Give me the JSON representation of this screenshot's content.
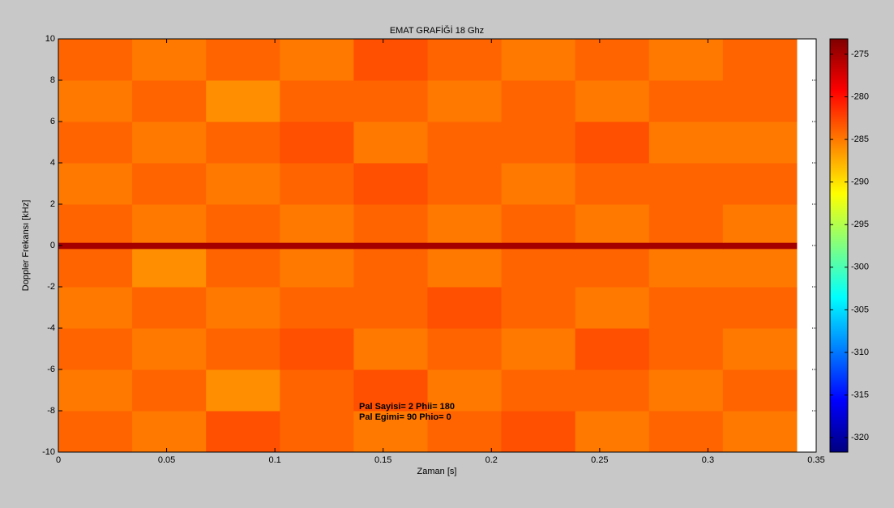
{
  "chart_data": {
    "type": "heatmap",
    "title": "EMAT GRAFİĞİ 18 Ghz",
    "xlabel": "Zaman [s]",
    "ylabel": "Doppler Frekansı [kHz]",
    "annotations": [
      "Pal Sayisi= 2 Phii= 180",
      "Pal Egimi= 90 Phio= 0"
    ],
    "x": [
      0,
      0.0341,
      0.0682,
      0.1023,
      0.1364,
      0.1705,
      0.2046,
      0.2387,
      0.2728,
      0.3069,
      0.341
    ],
    "y": [
      -10,
      -8,
      -6,
      -4,
      -2,
      -0.15,
      0.15,
      2,
      4,
      6,
      8,
      10
    ],
    "values": [
      [
        -284,
        -285,
        -283,
        -284,
        -285,
        -284,
        -283,
        -285,
        -284,
        -285
      ],
      [
        -285,
        -284,
        -286,
        -284,
        -283,
        -285,
        -284,
        -284,
        -285,
        -284
      ],
      [
        -284,
        -285,
        -284,
        -283,
        -285,
        -284,
        -285,
        -283,
        -284,
        -285
      ],
      [
        -285,
        -284,
        -285,
        -284,
        -284,
        -283,
        -284,
        -285,
        -284,
        -284
      ],
      [
        -284,
        -286,
        -284,
        -285,
        -284,
        -285,
        -284,
        -284,
        -285,
        -285
      ],
      [
        -275,
        -275,
        -275,
        -275,
        -275,
        -275,
        -275,
        -275,
        -275,
        -275
      ],
      [
        -284,
        -285,
        -284,
        -285,
        -284,
        -285,
        -284,
        -285,
        -284,
        -285
      ],
      [
        -285,
        -284,
        -285,
        -284,
        -283,
        -284,
        -285,
        -284,
        -284,
        -284
      ],
      [
        -284,
        -285,
        -284,
        -283,
        -285,
        -284,
        -284,
        -283,
        -285,
        -285
      ],
      [
        -285,
        -284,
        -286,
        -284,
        -284,
        -285,
        -284,
        -285,
        -284,
        -284
      ],
      [
        -284,
        -285,
        -284,
        -285,
        -283,
        -284,
        -285,
        -284,
        -285,
        -284
      ]
    ],
    "xlim": [
      0,
      0.35
    ],
    "xticks": [
      0,
      0.05,
      0.1,
      0.15,
      0.2,
      0.25,
      0.3,
      0.35
    ],
    "ylim": [
      -10,
      10
    ],
    "yticks": [
      -10,
      -8,
      -6,
      -4,
      -2,
      0,
      2,
      4,
      6,
      8,
      10
    ],
    "clim": [
      -321.7,
      -273.2
    ],
    "cticks": [
      -320,
      -315,
      -310,
      -305,
      -300,
      -295,
      -290,
      -285,
      -280,
      -275
    ],
    "colormap": "jet"
  }
}
